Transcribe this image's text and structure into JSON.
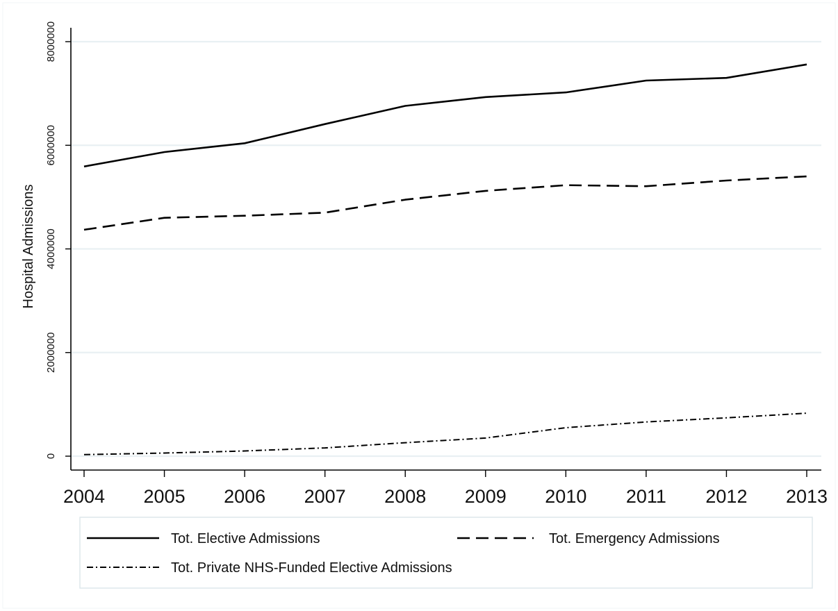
{
  "chart_data": {
    "type": "line",
    "title": "",
    "xlabel": "",
    "ylabel": "Hospital Admissions",
    "x": [
      2004,
      2005,
      2006,
      2007,
      2008,
      2009,
      2010,
      2011,
      2012,
      2013
    ],
    "xticks": [
      "2004",
      "2005",
      "2006",
      "2007",
      "2008",
      "2009",
      "2010",
      "2011",
      "2012",
      "2013"
    ],
    "yticks": [
      "0",
      "2000000",
      "4000000",
      "6000000",
      "8000000"
    ],
    "ylim": [
      -200000,
      8300000
    ],
    "grid": true,
    "legend_position": "bottom",
    "series": [
      {
        "name": "Tot. Elective Admissions",
        "style": "solid",
        "values": [
          5590000,
          5870000,
          6040000,
          6410000,
          6760000,
          6930000,
          7020000,
          7250000,
          7300000,
          7560000
        ]
      },
      {
        "name": "Tot. Emergency Admissions",
        "style": "dashed",
        "values": [
          4370000,
          4600000,
          4640000,
          4700000,
          4950000,
          5120000,
          5230000,
          5210000,
          5320000,
          5400000
        ]
      },
      {
        "name": "Tot. Private NHS-Funded Elective Admissions",
        "style": "dashdot",
        "values": [
          30000,
          60000,
          100000,
          160000,
          260000,
          350000,
          550000,
          660000,
          740000,
          830000
        ]
      }
    ]
  },
  "colors": {
    "line": "#000000",
    "grid": "#e9f0f3",
    "axis": "#000000",
    "legend_border": "#dde7ec"
  }
}
